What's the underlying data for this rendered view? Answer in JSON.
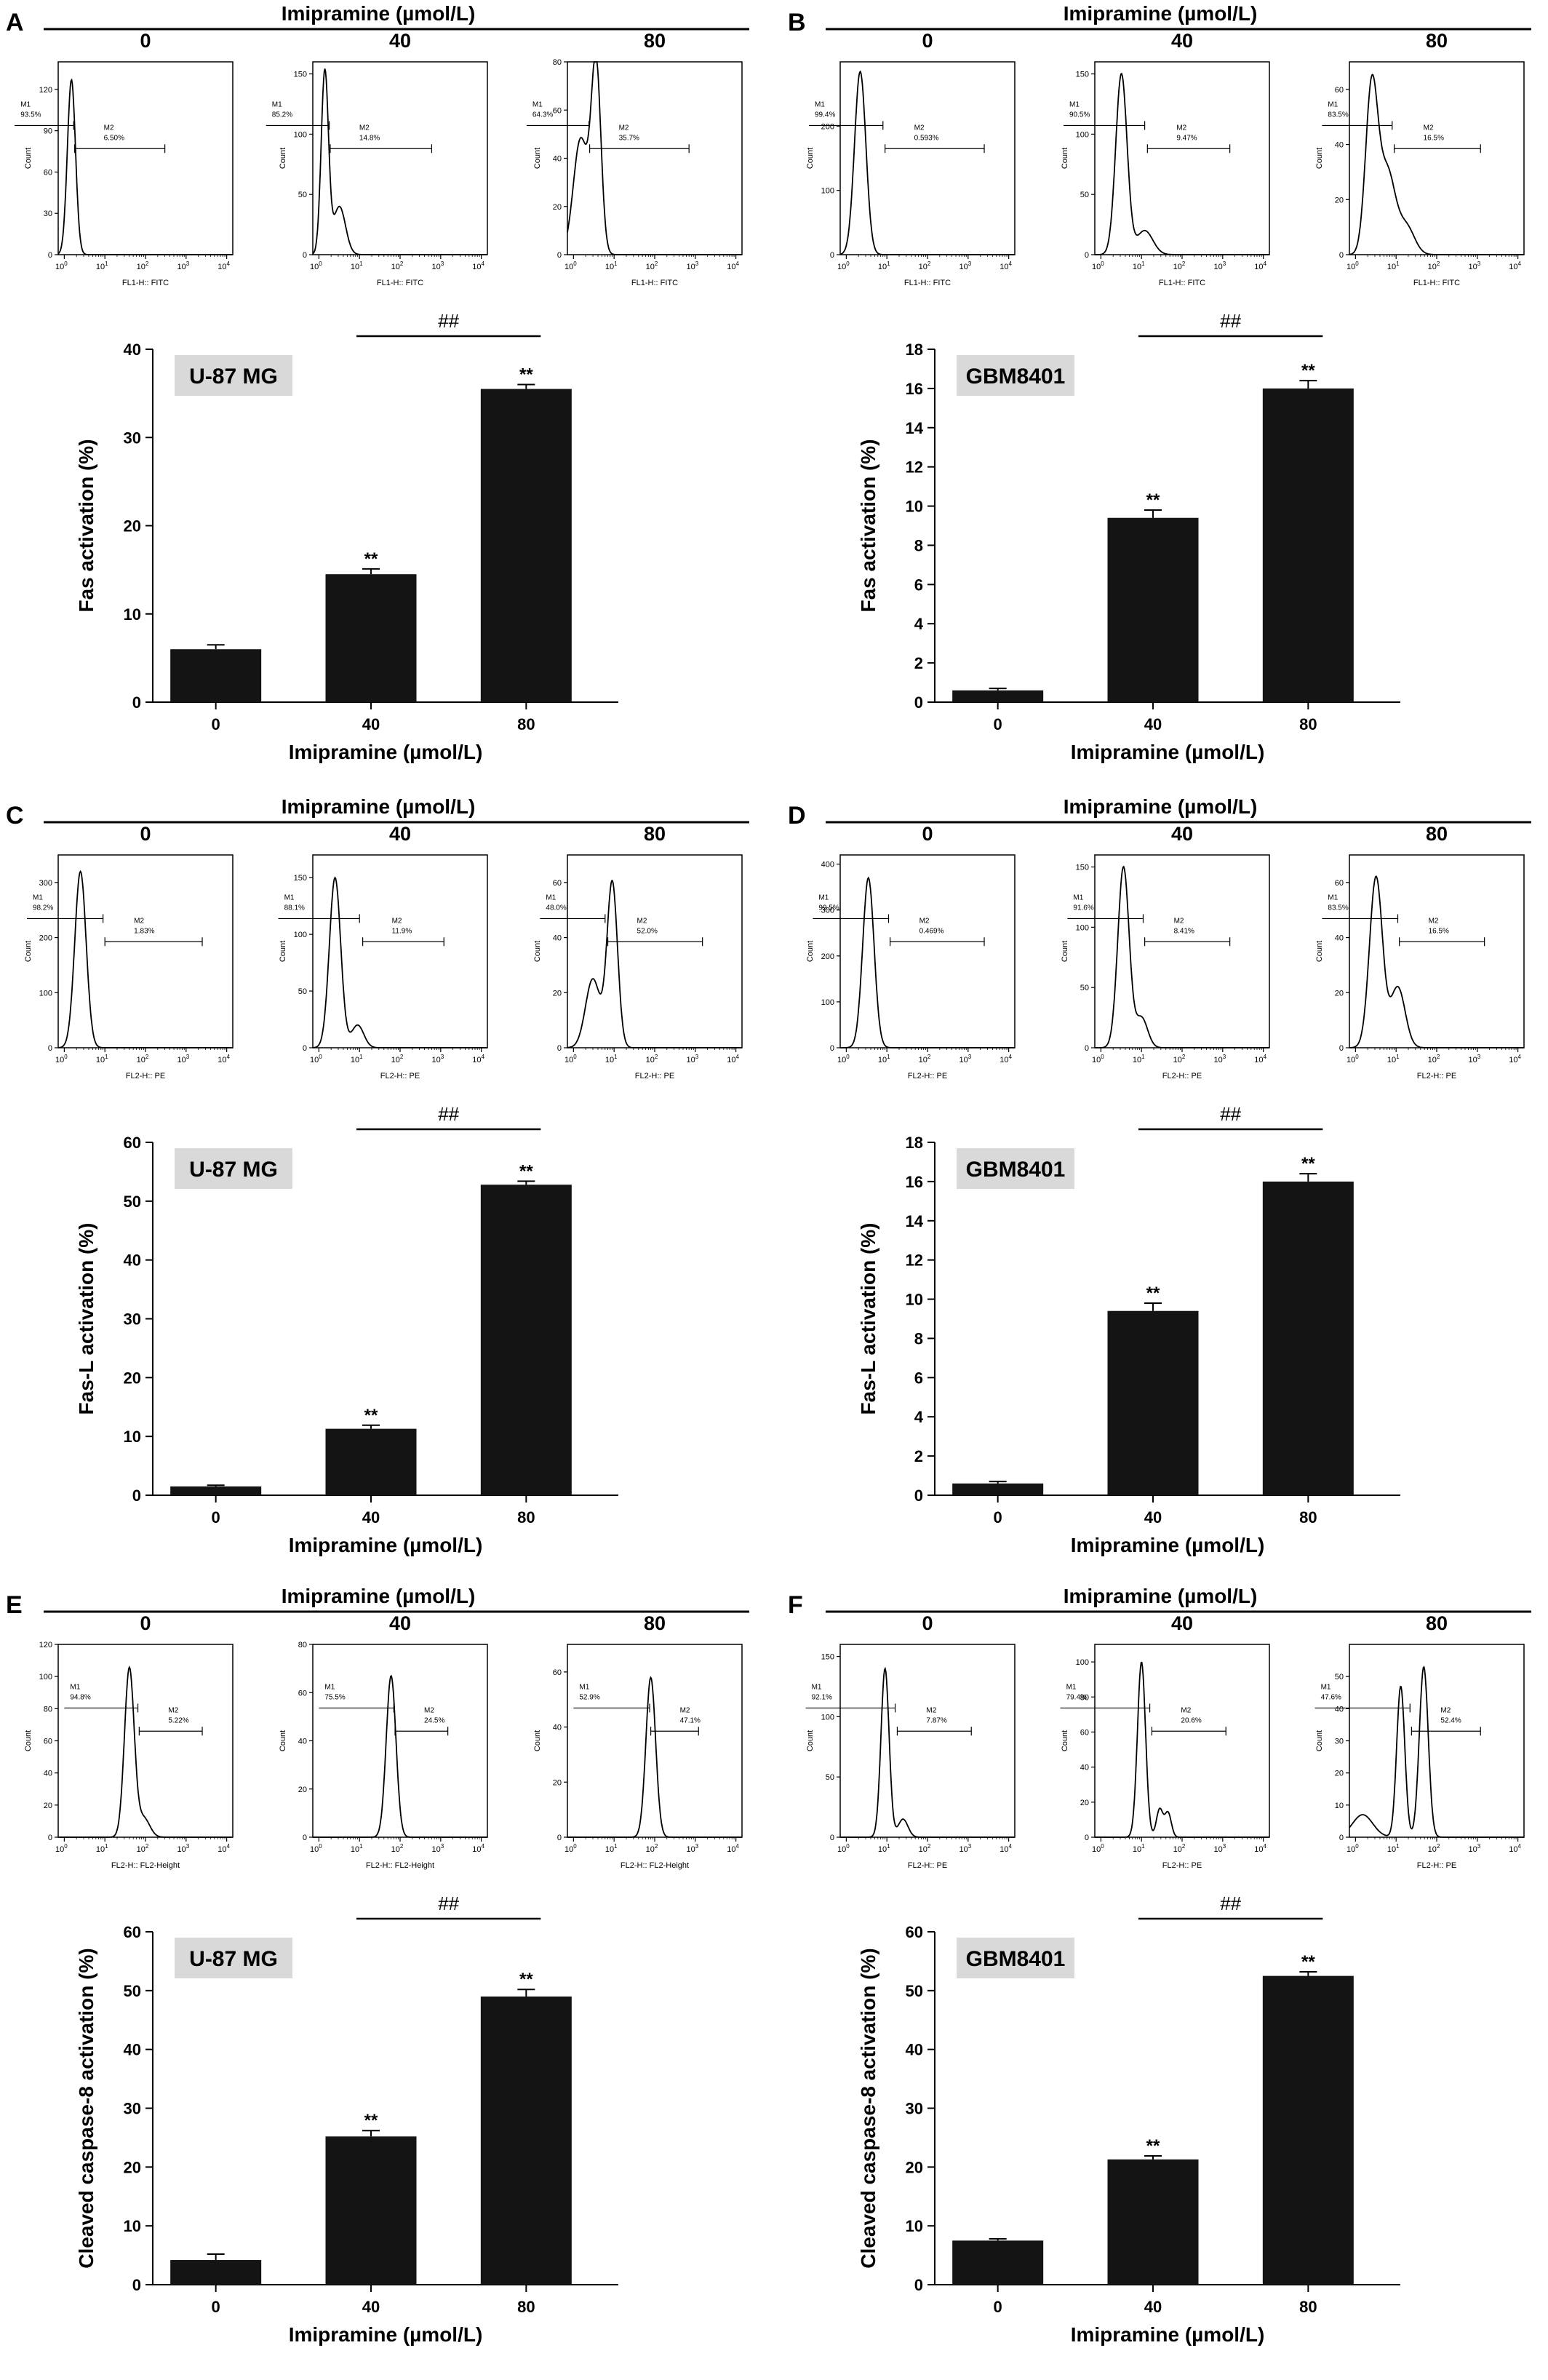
{
  "panels": [
    {
      "letter": "A",
      "header": "Imipramine (µmol/L)",
      "cell_line": "U-87 MG",
      "hist_xlabel": "FL1-H:: FITC",
      "hist_ylabel": "Count",
      "hist": [
        {
          "dose": "0",
          "ymax": 140,
          "yticks": [
            0,
            30,
            60,
            90,
            120
          ],
          "m1": "93.5%",
          "m2": "6.50%",
          "peaks": [
            [
              1.5,
              127,
              0.1
            ]
          ],
          "m1b": [
            0.06,
            1.7
          ],
          "m2b": [
            1.8,
            300
          ]
        },
        {
          "dose": "40",
          "ymax": 160,
          "yticks": [
            0,
            50,
            100,
            150
          ],
          "m1": "85.2%",
          "m2": "14.8%",
          "peaks": [
            [
              1.4,
              152,
              0.09
            ],
            [
              3.2,
              40,
              0.15
            ]
          ],
          "m1b": [
            0.05,
            1.8
          ],
          "m2b": [
            1.9,
            600
          ]
        },
        {
          "dose": "80",
          "ymax": 80,
          "yticks": [
            0,
            20,
            40,
            60,
            80
          ],
          "m1": "64.3%",
          "m2": "35.7%",
          "peaks": [
            [
              1.5,
              48,
              0.18
            ],
            [
              3.6,
              78,
              0.12
            ]
          ],
          "m1b": [
            0.07,
            2.4
          ],
          "m2b": [
            2.5,
            700
          ]
        }
      ],
      "chart_data": {
        "type": "bar",
        "categories": [
          "0",
          "40",
          "80"
        ],
        "values": [
          6,
          14.5,
          35.5
        ],
        "errors": [
          0.5,
          0.6,
          0.5
        ],
        "sig": [
          "",
          "**",
          "**"
        ],
        "bracket": "##",
        "xlabel": "Imipramine (µmol/L)",
        "ylabel": "Fas activation (%)",
        "ylim": [
          0,
          40
        ],
        "yticks": [
          0,
          10,
          20,
          30,
          40
        ]
      }
    },
    {
      "letter": "B",
      "header": "Imipramine (µmol/L)",
      "cell_line": "GBM8401",
      "hist_xlabel": "FL1-H:: FITC",
      "hist_ylabel": "Count",
      "hist": [
        {
          "dose": "0",
          "ymax": 300,
          "yticks": [
            0,
            100,
            200
          ],
          "m1": "99.4%",
          "m2": "0.593%",
          "peaks": [
            [
              2.2,
              285,
              0.14
            ]
          ],
          "m1b": [
            0.12,
            8
          ],
          "m2b": [
            9,
            2500
          ]
        },
        {
          "dose": "40",
          "ymax": 160,
          "yticks": [
            0,
            50,
            100,
            150
          ],
          "m1": "90.5%",
          "m2": "9.47%",
          "peaks": [
            [
              3.2,
              150,
              0.14
            ],
            [
              12,
              20,
              0.2
            ]
          ],
          "m1b": [
            0.12,
            12
          ],
          "m2b": [
            14,
            1500
          ]
        },
        {
          "dose": "80",
          "ymax": 70,
          "yticks": [
            0,
            20,
            40,
            60
          ],
          "m1": "83.5%",
          "m2": "16.5%",
          "peaks": [
            [
              2.5,
              60,
              0.15
            ],
            [
              6,
              30,
              0.2
            ],
            [
              18,
              10,
              0.2
            ]
          ],
          "m1b": [
            0.15,
            8
          ],
          "m2b": [
            9,
            1200
          ]
        }
      ],
      "chart_data": {
        "type": "bar",
        "categories": [
          "0",
          "40",
          "80"
        ],
        "values": [
          0.6,
          9.4,
          16
        ],
        "errors": [
          0.1,
          0.4,
          0.4
        ],
        "sig": [
          "",
          "**",
          "**"
        ],
        "bracket": "##",
        "xlabel": "Imipramine (µmol/L)",
        "ylabel": "Fas activation (%)",
        "ylim": [
          0,
          18
        ],
        "yticks": [
          0,
          2,
          4,
          6,
          8,
          10,
          12,
          14,
          16,
          18
        ]
      }
    },
    {
      "letter": "C",
      "header": "Imipramine (µmol/L)",
      "cell_line": "U-87 MG",
      "hist_xlabel": "FL2-H:: PE",
      "hist_ylabel": "Count",
      "hist": [
        {
          "dose": "0",
          "ymax": 350,
          "yticks": [
            0,
            100,
            200,
            300
          ],
          "m1": "98.2%",
          "m2": "1.83%",
          "peaks": [
            [
              2.5,
              320,
              0.14
            ]
          ],
          "m1b": [
            0.12,
            9
          ],
          "m2b": [
            10,
            2500
          ]
        },
        {
          "dose": "40",
          "ymax": 170,
          "yticks": [
            0,
            50,
            100,
            150
          ],
          "m1": "88.1%",
          "m2": "11.9%",
          "peaks": [
            [
              2.5,
              150,
              0.14
            ],
            [
              9,
              20,
              0.15
            ]
          ],
          "m1b": [
            0.1,
            10
          ],
          "m2b": [
            12,
            1200
          ]
        },
        {
          "dose": "80",
          "ymax": 70,
          "yticks": [
            0,
            20,
            40,
            60
          ],
          "m1": "48.0%",
          "m2": "52.0%",
          "peaks": [
            [
              3,
              25,
              0.18
            ],
            [
              9,
              60,
              0.13
            ]
          ],
          "m1b": [
            0.15,
            6
          ],
          "m2b": [
            7,
            1500
          ]
        }
      ],
      "chart_data": {
        "type": "bar",
        "categories": [
          "0",
          "40",
          "80"
        ],
        "values": [
          1.5,
          11.3,
          52.8
        ],
        "errors": [
          0.2,
          0.6,
          0.6
        ],
        "sig": [
          "",
          "**",
          "**"
        ],
        "bracket": "##",
        "xlabel": "Imipramine (µmol/L)",
        "ylabel": "Fas-L activation (%)",
        "ylim": [
          0,
          60
        ],
        "yticks": [
          0,
          10,
          20,
          30,
          40,
          50,
          60
        ]
      }
    },
    {
      "letter": "D",
      "header": "Imipramine (µmol/L)",
      "cell_line": "GBM8401",
      "hist_xlabel": "FL2-H:: PE",
      "hist_ylabel": "Count",
      "hist": [
        {
          "dose": "0",
          "ymax": 420,
          "yticks": [
            0,
            100,
            200,
            300,
            400
          ],
          "m1": "99.5%",
          "m2": "0.469%",
          "peaks": [
            [
              3.5,
              370,
              0.14
            ]
          ],
          "m1b": [
            0.15,
            11
          ],
          "m2b": [
            12,
            2500
          ]
        },
        {
          "dose": "40",
          "ymax": 160,
          "yticks": [
            0,
            50,
            100,
            150
          ],
          "m1": "91.6%",
          "m2": "8.41%",
          "peaks": [
            [
              3.6,
              150,
              0.14
            ],
            [
              10,
              25,
              0.15
            ]
          ],
          "m1b": [
            0.15,
            11
          ],
          "m2b": [
            12,
            1500
          ]
        },
        {
          "dose": "80",
          "ymax": 70,
          "yticks": [
            0,
            20,
            40,
            60
          ],
          "m1": "83.5%",
          "m2": "16.5%",
          "peaks": [
            [
              3.2,
              62,
              0.16
            ],
            [
              11,
              22,
              0.18
            ]
          ],
          "m1b": [
            0.15,
            11
          ],
          "m2b": [
            12,
            1500
          ]
        }
      ],
      "chart_data": {
        "type": "bar",
        "categories": [
          "0",
          "40",
          "80"
        ],
        "values": [
          0.6,
          9.4,
          16
        ],
        "errors": [
          0.1,
          0.4,
          0.4
        ],
        "sig": [
          "",
          "**",
          "**"
        ],
        "bracket": "##",
        "xlabel": "Imipramine (µmol/L)",
        "ylabel": "Fas-L activation (%)",
        "ylim": [
          0,
          18
        ],
        "yticks": [
          0,
          2,
          4,
          6,
          8,
          10,
          12,
          14,
          16,
          18
        ]
      }
    },
    {
      "letter": "E",
      "header": "Imipramine (µmol/L)",
      "cell_line": "U-87 MG",
      "hist_xlabel": "FL2-H:: FL2-Height",
      "hist_ylabel": "Count",
      "hist": [
        {
          "dose": "0",
          "ymax": 120,
          "yticks": [
            0,
            20,
            40,
            60,
            80,
            100,
            120
          ],
          "m1": "94.8%",
          "m2": "5.22%",
          "peaks": [
            [
              40,
              105,
              0.12
            ],
            [
              90,
              12,
              0.15
            ]
          ],
          "m1b": [
            1,
            65
          ],
          "m2b": [
            70,
            2500
          ]
        },
        {
          "dose": "40",
          "ymax": 80,
          "yticks": [
            0,
            20,
            40,
            60,
            80
          ],
          "m1": "75.5%",
          "m2": "24.5%",
          "peaks": [
            [
              60,
              67,
              0.12
            ]
          ],
          "m1b": [
            1,
            70
          ],
          "m2b": [
            75,
            1500
          ]
        },
        {
          "dose": "80",
          "ymax": 70,
          "yticks": [
            0,
            20,
            40,
            60
          ],
          "m1": "52.9%",
          "m2": "47.1%",
          "peaks": [
            [
              80,
              58,
              0.12
            ]
          ],
          "m1b": [
            1,
            75
          ],
          "m2b": [
            80,
            1200
          ]
        }
      ],
      "chart_data": {
        "type": "bar",
        "categories": [
          "0",
          "40",
          "80"
        ],
        "values": [
          4.2,
          25.2,
          49
        ],
        "errors": [
          1,
          1,
          1.2
        ],
        "sig": [
          "",
          "**",
          "**"
        ],
        "bracket": "##",
        "xlabel": "Imipramine (µmol/L)",
        "ylabel": "Cleaved caspase-8 activation (%)",
        "ylim": [
          0,
          60
        ],
        "yticks": [
          0,
          10,
          20,
          30,
          40,
          50,
          60
        ]
      }
    },
    {
      "letter": "F",
      "header": "Imipramine (µmol/L)",
      "cell_line": "GBM8401",
      "hist_xlabel": "FL2-H:: PE",
      "hist_ylabel": "Count",
      "hist": [
        {
          "dose": "0",
          "ymax": 160,
          "yticks": [
            0,
            50,
            100,
            150
          ],
          "m1": "92.1%",
          "m2": "7.87%",
          "peaks": [
            [
              9,
              140,
              0.1
            ],
            [
              25,
              15,
              0.12
            ]
          ],
          "m1b": [
            0.1,
            16
          ],
          "m2b": [
            18,
            1200
          ]
        },
        {
          "dose": "40",
          "ymax": 110,
          "yticks": [
            0,
            20,
            40,
            60,
            80,
            100
          ],
          "m1": "79.4%",
          "m2": "20.6%",
          "peaks": [
            [
              10,
              100,
              0.1
            ],
            [
              28,
              16,
              0.08
            ],
            [
              45,
              14,
              0.08
            ]
          ],
          "m1b": [
            0.1,
            16
          ],
          "m2b": [
            18,
            1200
          ]
        },
        {
          "dose": "80",
          "ymax": 60,
          "yticks": [
            0,
            10,
            20,
            30,
            40,
            50
          ],
          "m1": "47.6%",
          "m2": "52.4%",
          "peaks": [
            [
              1.5,
              7,
              0.25
            ],
            [
              13,
              47,
              0.1
            ],
            [
              48,
              53,
              0.11
            ]
          ],
          "m1b": [
            0.1,
            22
          ],
          "m2b": [
            24,
            1200
          ]
        }
      ],
      "chart_data": {
        "type": "bar",
        "categories": [
          "0",
          "40",
          "80"
        ],
        "values": [
          7.5,
          21.3,
          52.5
        ],
        "errors": [
          0.3,
          0.6,
          0.7
        ],
        "sig": [
          "",
          "**",
          "**"
        ],
        "bracket": "##",
        "xlabel": "Imipramine (µmol/L)",
        "ylabel": "Cleaved caspase-8 activation (%)",
        "ylim": [
          0,
          60
        ],
        "yticks": [
          0,
          10,
          20,
          30,
          40,
          50,
          60
        ]
      }
    }
  ]
}
